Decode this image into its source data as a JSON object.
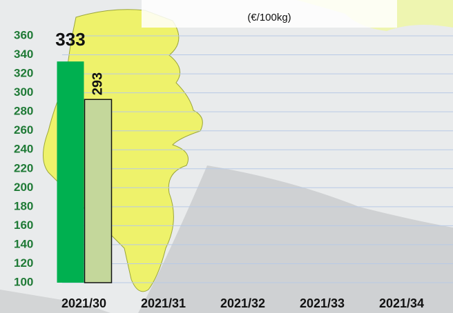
{
  "chart_data": {
    "type": "bar",
    "subtitle": "(€/100kg)",
    "categories": [
      "2021/30",
      "2021/31",
      "2021/32",
      "2021/33",
      "2021/34"
    ],
    "series": [
      {
        "color": "#00b050",
        "values": [
          333,
          null,
          null,
          null,
          null
        ]
      },
      {
        "color": "#c4d79b",
        "values": [
          293,
          null,
          null,
          null,
          null
        ]
      }
    ],
    "ylim": [
      100,
      360
    ],
    "yticks": [
      100,
      120,
      140,
      160,
      180,
      200,
      220,
      240,
      260,
      280,
      300,
      320,
      340,
      360
    ],
    "grid": true
  }
}
